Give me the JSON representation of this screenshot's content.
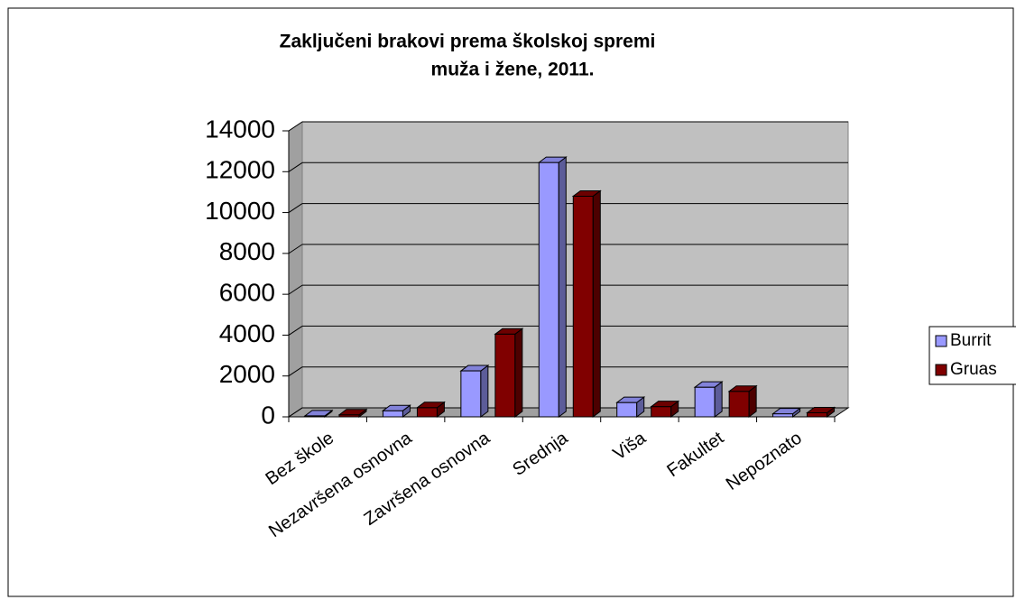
{
  "chart_data": {
    "type": "bar3d",
    "title": [
      "Zaključeni brakovi prema školskoj spremi",
      "muža i žene, 2011."
    ],
    "categories": [
      "Bez škole",
      "Nezavršena osnovna",
      "Završena osnovna",
      "Srednja",
      "Viša",
      "Fakultet",
      "Nepoznato"
    ],
    "series": [
      {
        "name": "Burrit",
        "color": "#9999ff",
        "values": [
          50,
          300,
          2250,
          12450,
          700,
          1450,
          150
        ]
      },
      {
        "name": "Gruas",
        "color": "#800000",
        "values": [
          100,
          450,
          4050,
          10800,
          500,
          1250,
          200
        ]
      }
    ],
    "ylim": [
      0,
      14000
    ],
    "yticks": [
      0,
      2000,
      4000,
      6000,
      8000,
      10000,
      12000,
      14000
    ],
    "grid": true,
    "legend": "right"
  }
}
